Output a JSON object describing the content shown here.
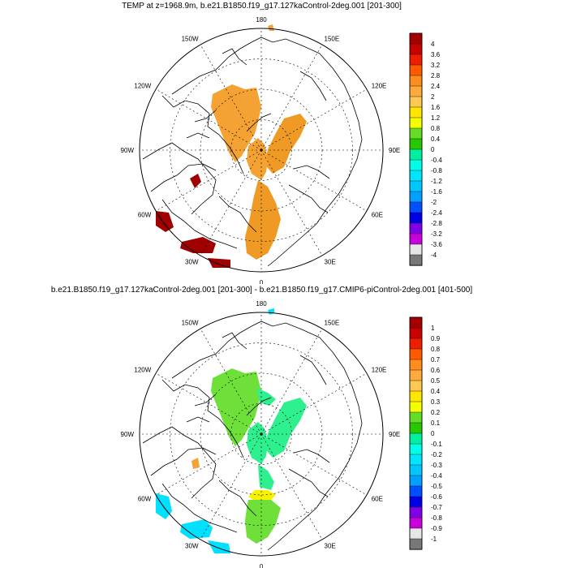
{
  "panels": [
    {
      "title": "TEMP at z=1968.9m, b.e21.B1850.f19_g17.127kaControl-2deg.001 [201-300]",
      "colorbar": {
        "labels": [
          "4",
          "3.6",
          "3.2",
          "2.8",
          "2.4",
          "2",
          "1.6",
          "1.2",
          "0.8",
          "0.4",
          "0",
          "-0.4",
          "-0.8",
          "-1.2",
          "-1.6",
          "-2",
          "-2.4",
          "-2.8",
          "-3.2",
          "-3.6",
          "-4"
        ]
      }
    },
    {
      "title": "b.e21.B1850.f19_g17.127kaControl-2deg.001 [201-300] - b.e21.B1850.f19_g17.CMIP6-piControl-2deg.001 [401-500]",
      "colorbar": {
        "labels": [
          "1",
          "0.9",
          "0.8",
          "0.7",
          "0.6",
          "0.5",
          "0.4",
          "0.3",
          "0.2",
          "0.1",
          "0",
          "-0.1",
          "-0.2",
          "-0.3",
          "-0.4",
          "-0.5",
          "-0.6",
          "-0.7",
          "-0.8",
          "-0.9",
          "-1"
        ]
      }
    }
  ],
  "lon_labels": [
    "180",
    "150E",
    "120E",
    "90E",
    "60E",
    "30E",
    "0",
    "30W",
    "60W",
    "90W",
    "120W",
    "150W"
  ],
  "colors": {
    "palette": [
      "#a50000",
      "#c80000",
      "#f01e00",
      "#ff5a00",
      "#ff8c1e",
      "#ffaa3c",
      "#ffc850",
      "#ffe600",
      "#f5ff00",
      "#64dc28",
      "#28c800",
      "#00f0a0",
      "#00ffe6",
      "#00e6ff",
      "#00c8ff",
      "#00a0ff",
      "#0050ff",
      "#0000e6",
      "#8200e6",
      "#c800dc",
      "#e6e6e6",
      "#787878"
    ],
    "top_field": "#f5a234",
    "top_field_dark": "#f09a26",
    "top_hot": "#a00000",
    "bottom_field": "#2ef08e",
    "bottom_green": "#6fe03a",
    "bottom_yellow": "#f6f200",
    "bottom_orange": "#f5a234",
    "bottom_cyan": "#00e0ff"
  }
}
